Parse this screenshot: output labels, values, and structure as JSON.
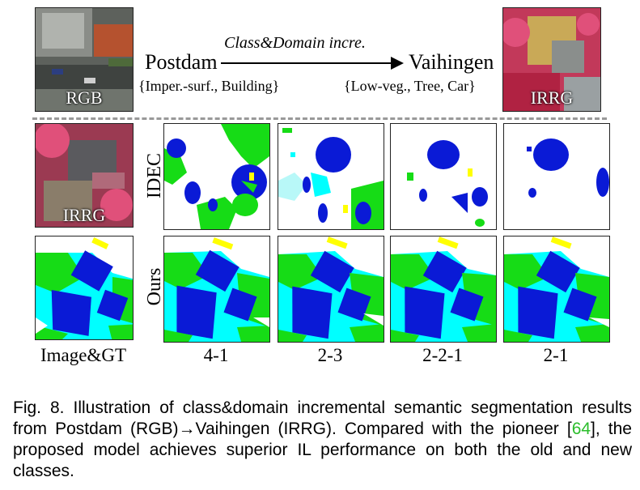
{
  "header": {
    "source_domain": "Postdam",
    "target_domain": "Vaihingen",
    "arrow_label": "Class&Domain incre.",
    "source_classes": "{Imper.-surf., Building}",
    "target_classes": "{Low-veg., Tree,  Car}",
    "source_image_label": "RGB",
    "target_image_label": "IRRG"
  },
  "grid": {
    "input_image_label": "IRRG",
    "row_labels": [
      "IDEC",
      "Ours"
    ],
    "column_labels": [
      "Image&GT",
      "4-1",
      "2-3",
      "2-2-1",
      "2-1"
    ]
  },
  "caption": {
    "prefix": "Fig. 8. Illustration of class&domain incremental semantic segmentation results from Postdam (RGB)→Vaihingen (IRRG). Compared with the pioneer [",
    "ref": "64",
    "suffix": "], the proposed model achieves superior IL performance on both the old and new classes."
  },
  "colors": {
    "building": "#0a1ad6",
    "low_veg": "#16dc16",
    "tree": "#00ffff",
    "car": "#ffff00",
    "imper_surf": "#ffffff",
    "ref_link": "#2bbd2b"
  }
}
